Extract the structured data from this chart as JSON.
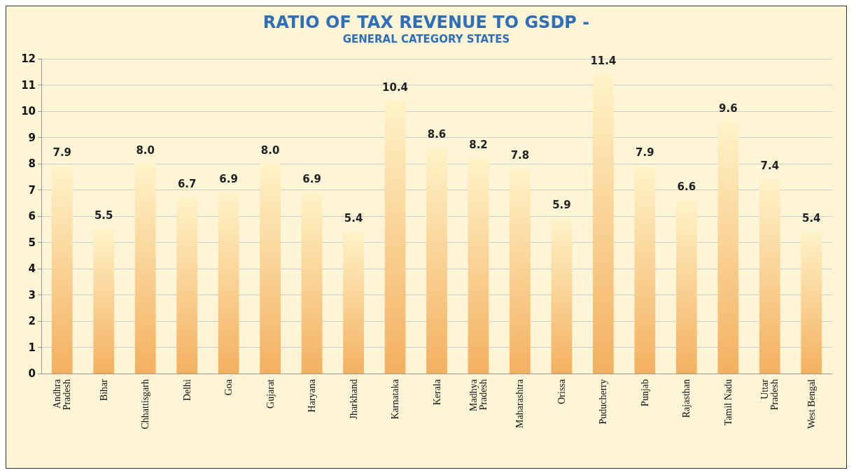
{
  "chart_data": {
    "type": "bar",
    "title": "RATIO OF TAX REVENUE TO GSDP -",
    "subtitle": "GENERAL CATEGORY STATES",
    "categories": [
      "Andhra Pradesh",
      "Bihar",
      "Chhattisgarh",
      "Delhi",
      "Goa",
      "Gujarat",
      "Haryana",
      "Jharkhand",
      "Karnataka",
      "Kerala",
      "Madhya Pradesh",
      "Maharashtra",
      "Orissa",
      "Puducherry",
      "Punjab",
      "Rajasthan",
      "Tamil Nadu",
      "Uttar Pradesh",
      "West Bengal"
    ],
    "values": [
      7.9,
      5.5,
      8.0,
      6.7,
      6.9,
      8.0,
      6.9,
      5.4,
      10.4,
      8.6,
      8.2,
      7.8,
      5.9,
      11.4,
      7.9,
      6.6,
      9.6,
      7.4,
      5.4
    ],
    "value_labels": [
      "7.9",
      "5.5",
      "8.0",
      "6.7",
      "6.9",
      "8.0",
      "6.9",
      "5.4",
      "10.4",
      "8.6",
      "8.2",
      "7.8",
      "5.9",
      "11.4",
      "7.9",
      "6.6",
      "9.6",
      "7.4",
      "5.4"
    ],
    "color": "#f3b060",
    "ylim": [
      0,
      12
    ],
    "yticks": [
      0,
      1,
      2,
      3,
      4,
      5,
      6,
      7,
      8,
      9,
      10,
      11,
      12
    ],
    "grid": "y"
  }
}
